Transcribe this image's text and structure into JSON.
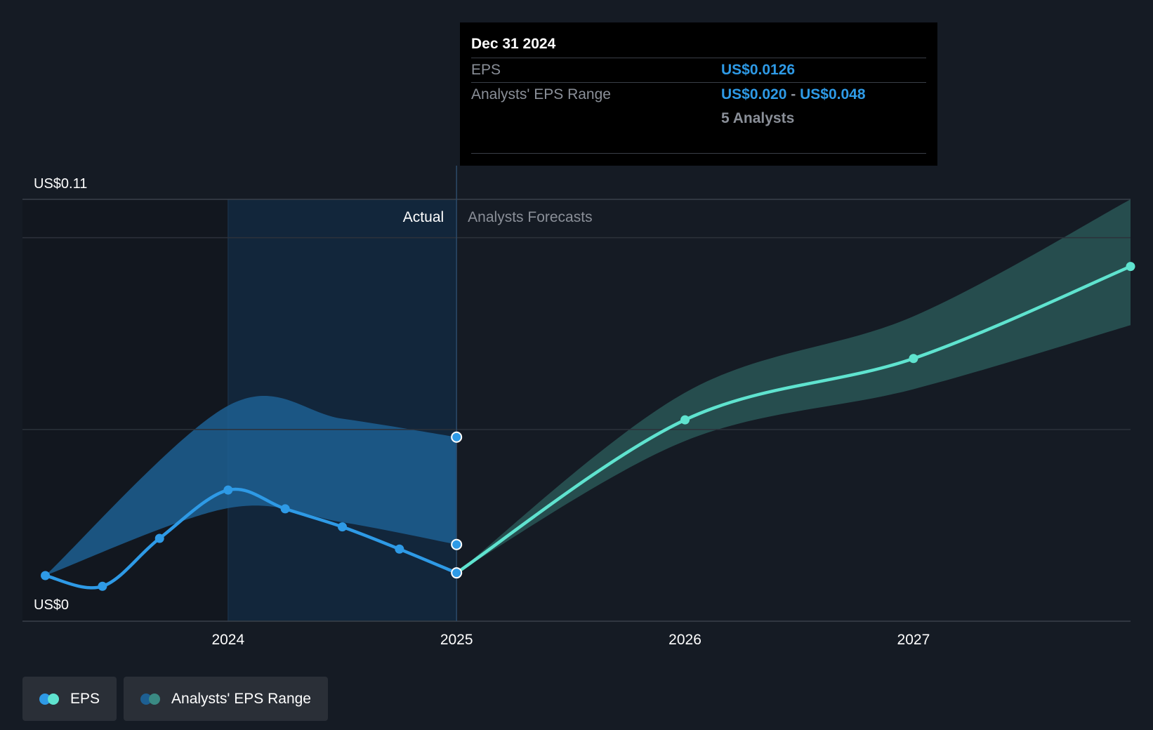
{
  "tooltip": {
    "date": "Dec 31 2024",
    "eps_label": "EPS",
    "eps_value": "US$0.0126",
    "range_label": "Analysts' EPS Range",
    "range_low": "US$0.020",
    "range_sep": "-",
    "range_high": "US$0.048",
    "analysts": "5 Analysts"
  },
  "legend": {
    "eps_label": "EPS",
    "range_label": "Analysts' EPS Range"
  },
  "colors": {
    "background": "#151b24",
    "actual_line": "#2e9ae6",
    "forecast_line": "#5fe3cf",
    "actual_band": "#1d5f92",
    "forecast_band": "#2a5a59",
    "actual_region": "#12263b",
    "grid": "#2c323b"
  },
  "chart_data": {
    "type": "line",
    "section_labels": {
      "actual": "Actual",
      "forecast": "Analysts Forecasts"
    },
    "y_tick_labels": {
      "top": "US$0.11",
      "bottom": "US$0"
    },
    "ylim": [
      0,
      0.11
    ],
    "xlim": [
      2023.1,
      2027.95
    ],
    "x_ticks": [
      2024,
      2025,
      2026,
      2027
    ],
    "x_tick_labels": [
      "2024",
      "2025",
      "2026",
      "2027"
    ],
    "gridlines": [
      0.1,
      0.05
    ],
    "divider_x": 2025,
    "actual_region_start": 2024,
    "series": [
      {
        "name": "EPS",
        "kind": "actual",
        "points": [
          [
            2023.2,
            0.0119
          ],
          [
            2023.45,
            0.0091
          ],
          [
            2023.7,
            0.0216
          ],
          [
            2024.0,
            0.0342
          ],
          [
            2024.25,
            0.0293
          ],
          [
            2024.5,
            0.0246
          ],
          [
            2024.75,
            0.0188
          ],
          [
            2025.0,
            0.0126
          ]
        ]
      },
      {
        "name": "EPS",
        "kind": "forecast",
        "points": [
          [
            2025.0,
            0.0126
          ],
          [
            2026.0,
            0.0525
          ],
          [
            2027.0,
            0.0685
          ],
          [
            2027.95,
            0.0925
          ]
        ]
      }
    ],
    "ranges": [
      {
        "name": "Analysts' EPS Range",
        "kind": "actual",
        "x": [
          2023.2,
          2024.0,
          2024.5,
          2025.0
        ],
        "low": [
          0.0119,
          0.0295,
          0.0258,
          0.02
        ],
        "high": [
          0.0119,
          0.0562,
          0.0528,
          0.048
        ]
      },
      {
        "name": "Analysts' EPS Range",
        "kind": "forecast",
        "x": [
          2025.0,
          2026.0,
          2027.0,
          2027.95
        ],
        "low": [
          0.0126,
          0.047,
          0.0605,
          0.0772
        ],
        "high": [
          0.0126,
          0.0596,
          0.0795,
          0.11
        ]
      }
    ],
    "range_markers": [
      [
        2025.0,
        0.048
      ],
      [
        2025.0,
        0.02
      ]
    ]
  }
}
